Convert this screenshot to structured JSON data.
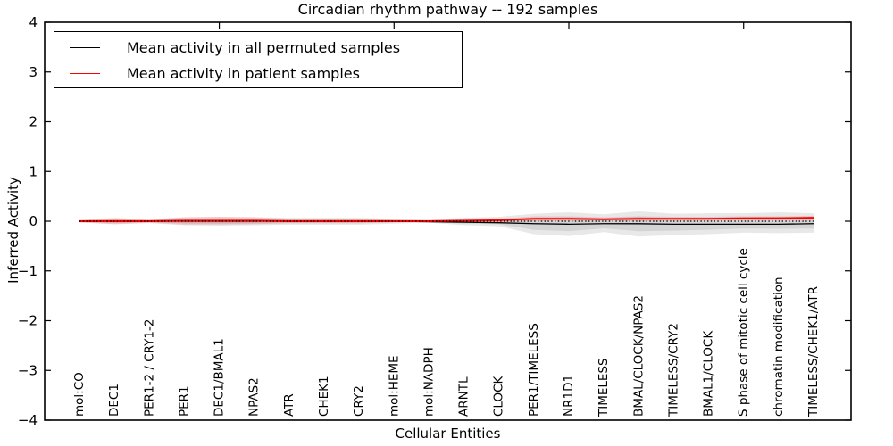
{
  "title": "Circadian rhythm pathway -- 192 samples",
  "legend": {
    "items": [
      {
        "label": "Mean activity in all permuted samples",
        "color": "#000000"
      },
      {
        "label": "Mean activity in patient samples",
        "color": "#ff0000"
      }
    ]
  },
  "axes": {
    "ylabel": "Inferred Activity",
    "xlabel": "Cellular Entities"
  },
  "chart_data": {
    "type": "line",
    "title": "Circadian rhythm pathway -- 192 samples",
    "xlabel": "Cellular Entities",
    "ylabel": "Inferred Activity",
    "ylim": [
      -4,
      4
    ],
    "yticks": [
      4,
      3,
      2,
      1,
      0,
      -1,
      -2,
      -3,
      -4
    ],
    "xticks_top": [
      4,
      9,
      14,
      19
    ],
    "grid": false,
    "legend_position": "upper left",
    "categories": [
      "mol:CO",
      "DEC1",
      "PER1-2 / CRY1-2",
      "PER1",
      "DEC1/BMAL1",
      "NPAS2",
      "ATR",
      "CHEK1",
      "CRY2",
      "mol:HEME",
      "mol:NADPH",
      "ARNTL",
      "CLOCK",
      "PER1/TIMELESS",
      "NR1D1",
      "TIMELESS",
      "BMAL/CLOCK/NPAS2",
      "TIMELESS/CRY2",
      "BMAL1/CLOCK",
      "S phase of mitotic cell cycle",
      "chromatin modification",
      "TIMELESS/CHEK1/ATR"
    ],
    "series": [
      {
        "name": "Mean activity in all permuted samples",
        "color": "#000000",
        "style": "solid",
        "lw": 1.3,
        "values": [
          0.0,
          0.0,
          0.0,
          0.0,
          0.0,
          0.0,
          0.0,
          0.0,
          0.0,
          0.0,
          -0.01,
          -0.02,
          -0.03,
          -0.05,
          -0.06,
          -0.05,
          -0.05,
          -0.06,
          -0.06,
          -0.06,
          -0.06,
          -0.05
        ]
      },
      {
        "name": "Mean activity in patient samples",
        "color": "#ff0000",
        "style": "solid",
        "lw": 1.9,
        "values": [
          0.0,
          0.0,
          0.0,
          0.01,
          0.01,
          0.01,
          0.0,
          0.0,
          0.0,
          0.0,
          0.0,
          0.01,
          0.02,
          0.05,
          0.05,
          0.04,
          0.05,
          0.05,
          0.05,
          0.06,
          0.06,
          0.07
        ]
      },
      {
        "name": "zero baseline",
        "color": "#000000",
        "style": "dotted",
        "lw": 1.3,
        "values": [
          0,
          0,
          0,
          0,
          0,
          0,
          0,
          0,
          0,
          0,
          0,
          0,
          0,
          0,
          0,
          0,
          0,
          0,
          0,
          0,
          0,
          0
        ]
      }
    ],
    "bands": [
      {
        "name": "permuted std band",
        "fill": "#000000",
        "opacity": 0.09,
        "upper": [
          0.03,
          0.06,
          0.04,
          0.08,
          0.09,
          0.08,
          0.07,
          0.07,
          0.07,
          0.05,
          0.03,
          0.07,
          0.09,
          0.15,
          0.18,
          0.14,
          0.2,
          0.15,
          0.16,
          0.16,
          0.18,
          0.16
        ],
        "lower": [
          -0.03,
          -0.06,
          -0.04,
          -0.08,
          -0.09,
          -0.08,
          -0.07,
          -0.07,
          -0.07,
          -0.05,
          -0.03,
          -0.08,
          -0.1,
          -0.26,
          -0.3,
          -0.22,
          -0.31,
          -0.28,
          -0.26,
          -0.23,
          -0.24,
          -0.23
        ]
      },
      {
        "name": "patient std band",
        "fill": "#ff0000",
        "opacity": 0.12,
        "upper": [
          0.02,
          0.07,
          0.03,
          0.08,
          0.09,
          0.08,
          0.05,
          0.05,
          0.05,
          0.03,
          0.02,
          0.04,
          0.05,
          0.1,
          0.1,
          0.08,
          0.1,
          0.09,
          0.09,
          0.1,
          0.1,
          0.11
        ],
        "lower": [
          -0.02,
          -0.06,
          -0.03,
          -0.07,
          -0.07,
          -0.06,
          -0.04,
          -0.04,
          -0.04,
          -0.02,
          -0.01,
          -0.02,
          -0.02,
          0.0,
          0.01,
          0.01,
          0.0,
          0.01,
          0.01,
          0.02,
          0.02,
          0.03
        ]
      }
    ]
  }
}
